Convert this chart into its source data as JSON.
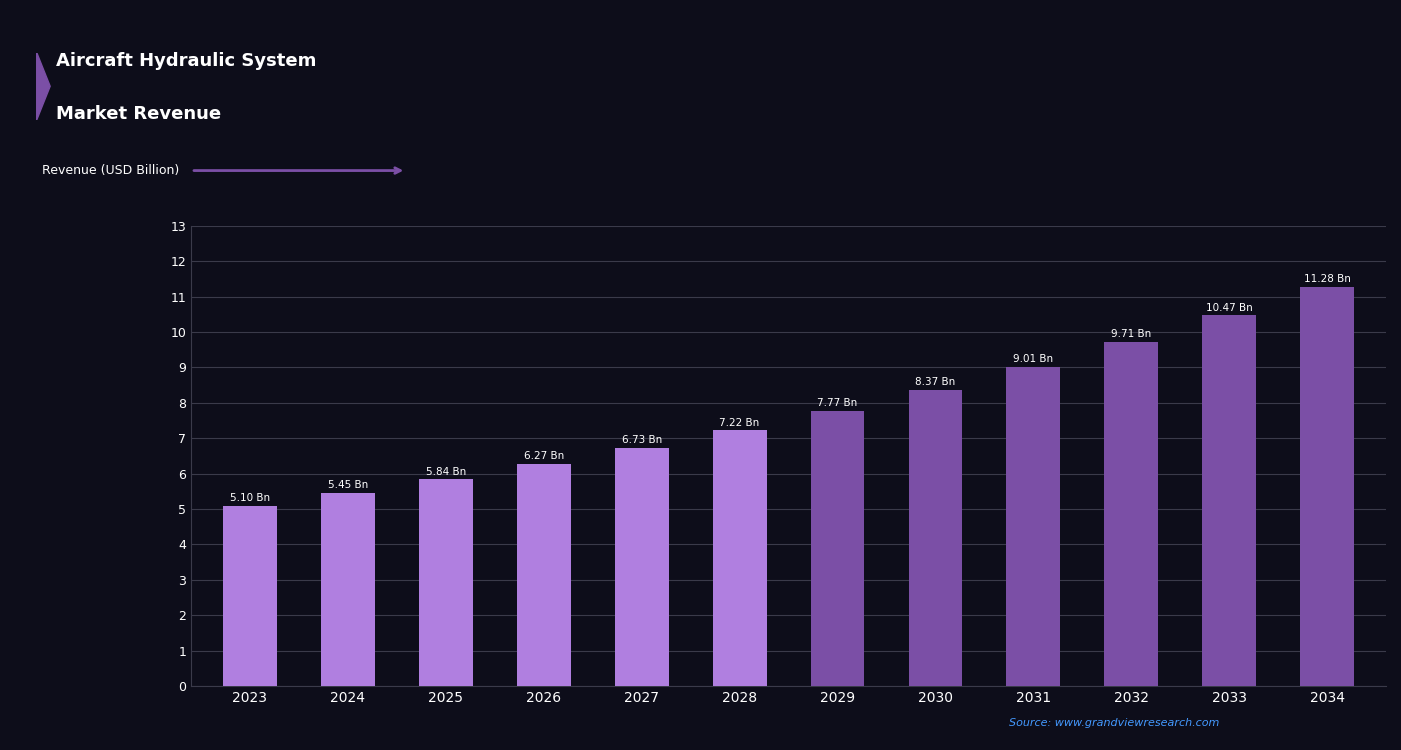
{
  "title_line1": "Aircraft Hydraulic System",
  "title_line2": "Market Revenue",
  "years": [
    "2023",
    "2024",
    "2025",
    "2026",
    "2027",
    "2028",
    "2029",
    "2030",
    "2031",
    "2032",
    "2033",
    "2034"
  ],
  "values": [
    5.1,
    5.45,
    5.84,
    6.27,
    6.73,
    7.22,
    7.77,
    8.37,
    9.01,
    9.71,
    10.47,
    11.28
  ],
  "bar_colors_light": [
    "#b07fe0",
    "#b07fe0",
    "#b07fe0",
    "#b07fe0",
    "#b07fe0",
    "#b07fe0",
    "#7b4fa6",
    "#7b4fa6",
    "#7b4fa6",
    "#7b4fa6",
    "#7b4fa6",
    "#7b4fa6"
  ],
  "background_color": "#0d0d1a",
  "grid_color": "#3a3a4a",
  "text_color": "#ffffff",
  "ylabel": "Revenue (USD Billion)",
  "ylim": [
    0,
    13
  ],
  "yticks": [
    0,
    1,
    2,
    3,
    4,
    5,
    6,
    7,
    8,
    9,
    10,
    11,
    12,
    13
  ],
  "source_text": "Source: www.grandviewresearch.com",
  "arrow_annotation": "Revenue (USD Billion)",
  "bar_value_labels": [
    "5.10 Bn",
    "5.45 Bn",
    "5.84 Bn",
    "6.27 Bn",
    "6.73 Bn",
    "7.22 Bn",
    "7.77 Bn",
    "8.37 Bn",
    "9.01 Bn",
    "9.71 Bn",
    "10.47 Bn",
    "11.28 Bn"
  ]
}
